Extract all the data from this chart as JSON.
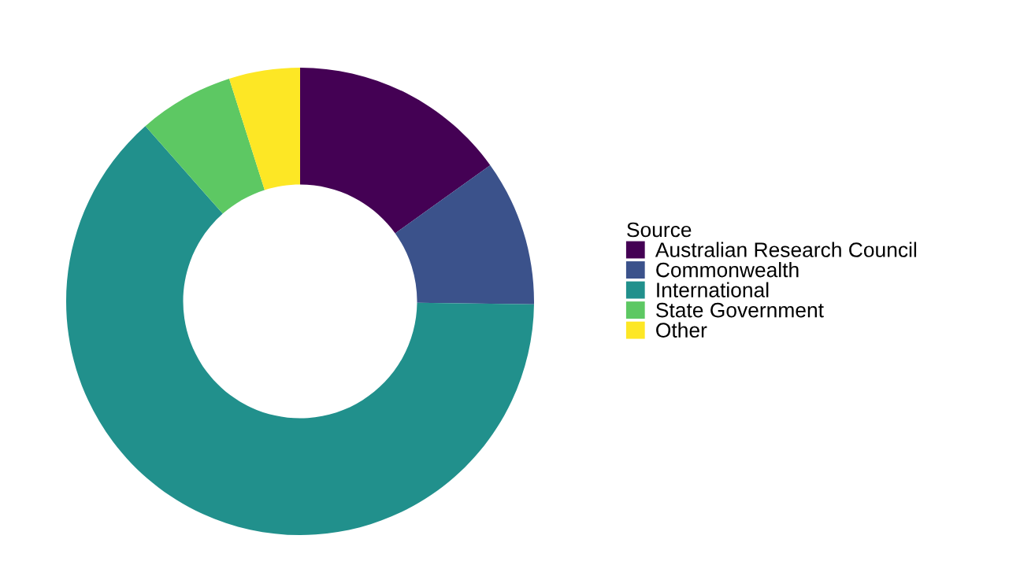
{
  "chart_data": {
    "type": "donut",
    "categories": [
      "Australian Research Council",
      "Commonwealth",
      "International",
      "State Government",
      "Other"
    ],
    "values": [
      15.1,
      10.1,
      63.3,
      6.6,
      4.9
    ],
    "colors": [
      "#440154",
      "#3b528b",
      "#21908c",
      "#5dc863",
      "#fde725"
    ],
    "legend_title": "Source",
    "legend": "right"
  }
}
